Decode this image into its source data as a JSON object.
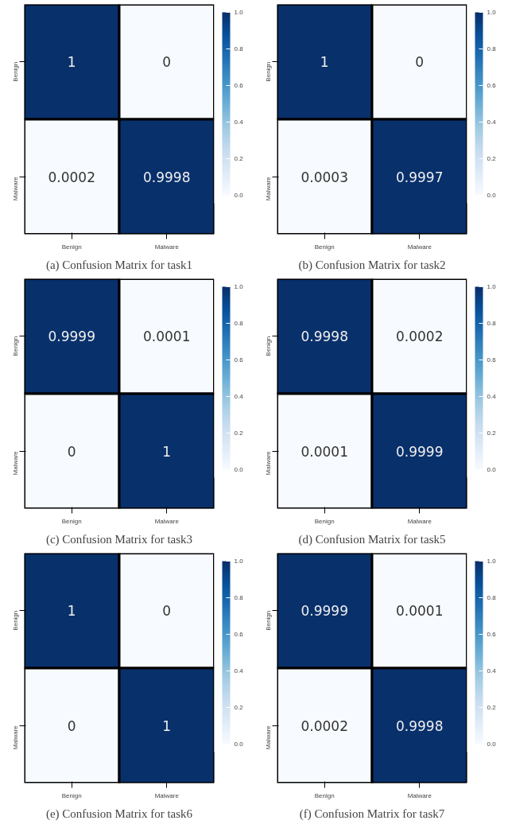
{
  "chart_data": [
    {
      "type": "heatmap",
      "title": "(a) Confusion Matrix for task1",
      "categories": [
        "Benign",
        "Malware"
      ],
      "y_categories": [
        "Benign",
        "Malware"
      ],
      "cells": [
        [
          1,
          0
        ],
        [
          0.0002,
          0.9998
        ]
      ],
      "data_labels": true,
      "clim": [
        0,
        1
      ],
      "cticks": [
        {
          "value": 0,
          "label": "0.0"
        },
        {
          "value": 0.2,
          "label": "0.2"
        },
        {
          "value": 0.4,
          "label": "0.4"
        },
        {
          "value": 0.6,
          "label": "0.6"
        },
        {
          "value": 0.8,
          "label": "0.8"
        },
        {
          "value": 1,
          "label": "1.0"
        }
      ]
    },
    {
      "type": "heatmap",
      "title": "(b) Confusion Matrix for task2",
      "categories": [
        "Benign",
        "Malware"
      ],
      "y_categories": [
        "Benign",
        "Malware"
      ],
      "cells": [
        [
          1,
          0
        ],
        [
          0.0003,
          0.9997
        ]
      ],
      "data_labels": true,
      "clim": [
        0,
        1
      ],
      "cticks": [
        {
          "value": 0,
          "label": "0.0"
        },
        {
          "value": 0.2,
          "label": "0.2"
        },
        {
          "value": 0.4,
          "label": "0.4"
        },
        {
          "value": 0.6,
          "label": "0.6"
        },
        {
          "value": 0.8,
          "label": "0.8"
        },
        {
          "value": 1,
          "label": "1.0"
        }
      ]
    },
    {
      "type": "heatmap",
      "title": "(c) Confusion Matrix for task3",
      "categories": [
        "Benign",
        "Malware"
      ],
      "y_categories": [
        "Benign",
        "Malware"
      ],
      "cells": [
        [
          0.9999,
          0.0001
        ],
        [
          0,
          1
        ]
      ],
      "data_labels": true,
      "clim": [
        0,
        1
      ],
      "cticks": [
        {
          "value": 0,
          "label": "0.0"
        },
        {
          "value": 0.2,
          "label": "0.2"
        },
        {
          "value": 0.4,
          "label": "0.4"
        },
        {
          "value": 0.6,
          "label": "0.6"
        },
        {
          "value": 0.8,
          "label": "0.8"
        },
        {
          "value": 1,
          "label": "1.0"
        }
      ]
    },
    {
      "type": "heatmap",
      "title": "(d) Confusion Matrix for task5",
      "categories": [
        "Benign",
        "Malware"
      ],
      "y_categories": [
        "Benign",
        "Malware"
      ],
      "cells": [
        [
          0.9998,
          0.0002
        ],
        [
          0.0001,
          0.9999
        ]
      ],
      "data_labels": true,
      "clim": [
        0,
        1
      ],
      "cticks": [
        {
          "value": 0,
          "label": "0.0"
        },
        {
          "value": 0.2,
          "label": "0.2"
        },
        {
          "value": 0.4,
          "label": "0.4"
        },
        {
          "value": 0.6,
          "label": "0.6"
        },
        {
          "value": 0.8,
          "label": "0.8"
        },
        {
          "value": 1,
          "label": "1.0"
        }
      ]
    },
    {
      "type": "heatmap",
      "title": "(e) Confusion Matrix for task6",
      "categories": [
        "Benign",
        "Malware"
      ],
      "y_categories": [
        "Benign",
        "Malware"
      ],
      "cells": [
        [
          1,
          0
        ],
        [
          0,
          1
        ]
      ],
      "data_labels": true,
      "clim": [
        0,
        1
      ],
      "cticks": [
        {
          "value": 0,
          "label": "0.0"
        },
        {
          "value": 0.2,
          "label": "0.2"
        },
        {
          "value": 0.4,
          "label": "0.4"
        },
        {
          "value": 0.6,
          "label": "0.6"
        },
        {
          "value": 0.8,
          "label": "0.8"
        },
        {
          "value": 1,
          "label": "1.0"
        }
      ]
    },
    {
      "type": "heatmap",
      "title": "(f) Confusion Matrix for task7",
      "categories": [
        "Benign",
        "Malware"
      ],
      "y_categories": [
        "Benign",
        "Malware"
      ],
      "cells": [
        [
          0.9999,
          0.0001
        ],
        [
          0.0002,
          0.9998
        ]
      ],
      "data_labels": true,
      "clim": [
        0,
        1
      ],
      "cticks": [
        {
          "value": 0,
          "label": "0.0"
        },
        {
          "value": 0.2,
          "label": "0.2"
        },
        {
          "value": 0.4,
          "label": "0.4"
        },
        {
          "value": 0.6,
          "label": "0.6"
        },
        {
          "value": 0.8,
          "label": "0.8"
        },
        {
          "value": 1,
          "label": "1.0"
        }
      ]
    }
  ]
}
